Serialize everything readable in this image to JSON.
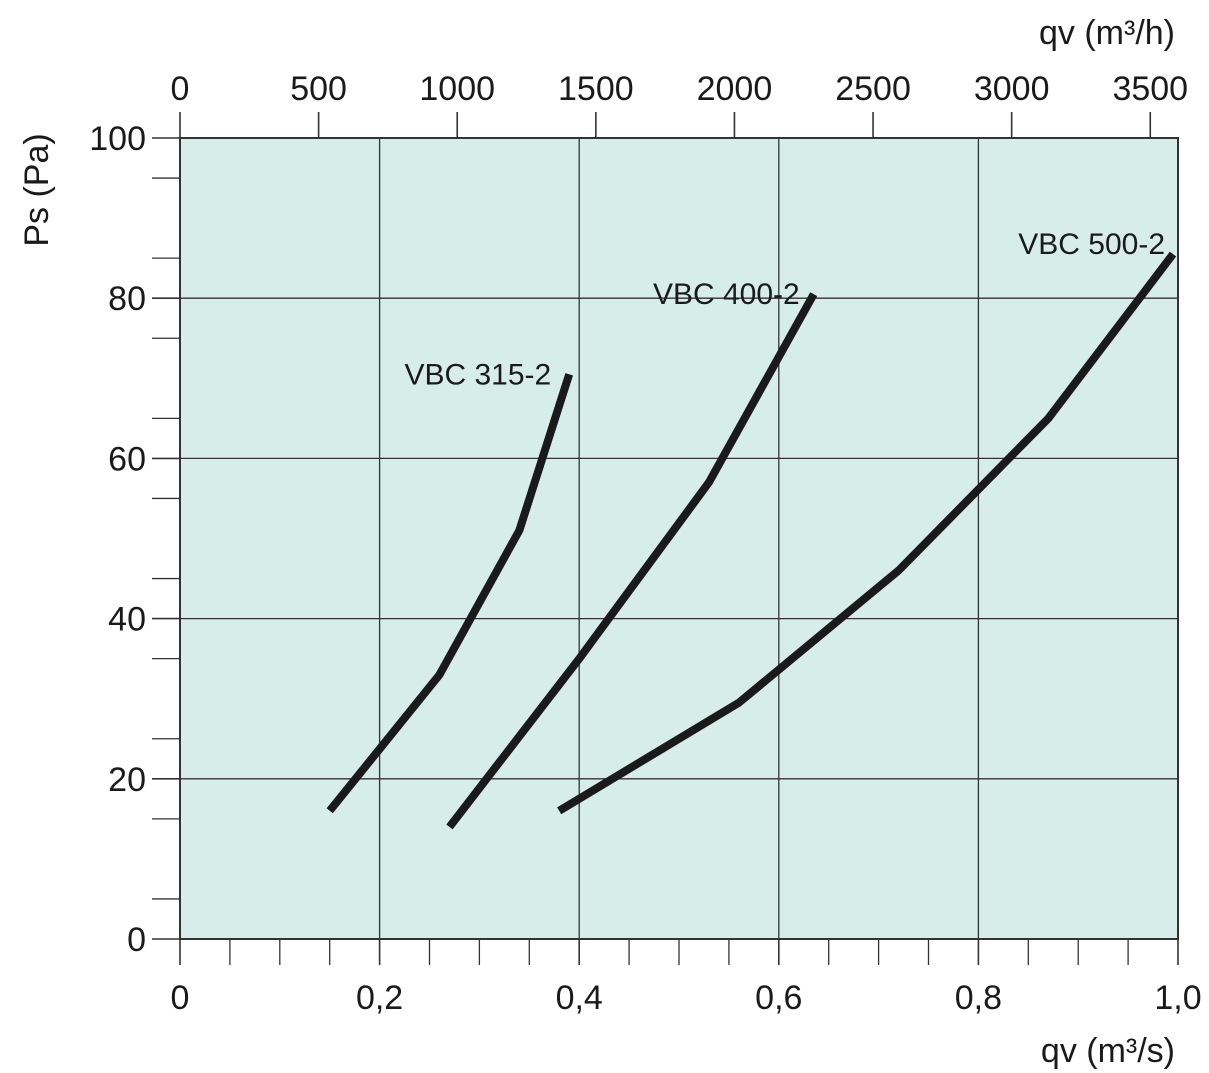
{
  "chart_data": {
    "type": "line",
    "title": "",
    "xlabel": "qv (m³/s)",
    "x2label": "qv (m³/h)",
    "ylabel": "Ps (Pa)",
    "xlim": [
      0,
      1.0
    ],
    "x2lim": [
      0,
      3600
    ],
    "ylim": [
      0,
      100
    ],
    "grid": true,
    "legend": "none",
    "colors": {
      "plot_background": "#d6ede9",
      "line": "#1a1a1a",
      "grid": "#333333"
    },
    "x_ticks": [
      {
        "value": 0,
        "label": "0"
      },
      {
        "value": 0.2,
        "label": "0,2"
      },
      {
        "value": 0.4,
        "label": "0,4"
      },
      {
        "value": 0.6,
        "label": "0,6"
      },
      {
        "value": 0.8,
        "label": "0,8"
      },
      {
        "value": 1.0,
        "label": "1,0"
      }
    ],
    "x2_ticks": [
      {
        "value": 0,
        "label": "0"
      },
      {
        "value": 500,
        "label": "500"
      },
      {
        "value": 1000,
        "label": "1000"
      },
      {
        "value": 1500,
        "label": "1500"
      },
      {
        "value": 2000,
        "label": "2000"
      },
      {
        "value": 2500,
        "label": "2500"
      },
      {
        "value": 3000,
        "label": "3000"
      },
      {
        "value": 3500,
        "label": "3500"
      }
    ],
    "y_ticks": [
      {
        "value": 0,
        "label": "0"
      },
      {
        "value": 20,
        "label": "20"
      },
      {
        "value": 40,
        "label": "40"
      },
      {
        "value": 60,
        "label": "60"
      },
      {
        "value": 80,
        "label": "80"
      },
      {
        "value": 100,
        "label": "100"
      }
    ],
    "series": [
      {
        "name": "VBC 315-2",
        "points": [
          [
            0.15,
            16
          ],
          [
            0.26,
            33
          ],
          [
            0.34,
            51
          ],
          [
            0.39,
            70.5
          ]
        ]
      },
      {
        "name": "VBC 400-2",
        "points": [
          [
            0.27,
            14
          ],
          [
            0.4,
            35
          ],
          [
            0.53,
            57
          ],
          [
            0.635,
            80.5
          ]
        ]
      },
      {
        "name": "VBC 500-2",
        "points": [
          [
            0.38,
            16
          ],
          [
            0.56,
            29.5
          ],
          [
            0.72,
            46
          ],
          [
            0.87,
            65
          ],
          [
            0.995,
            85.5
          ]
        ]
      }
    ]
  }
}
